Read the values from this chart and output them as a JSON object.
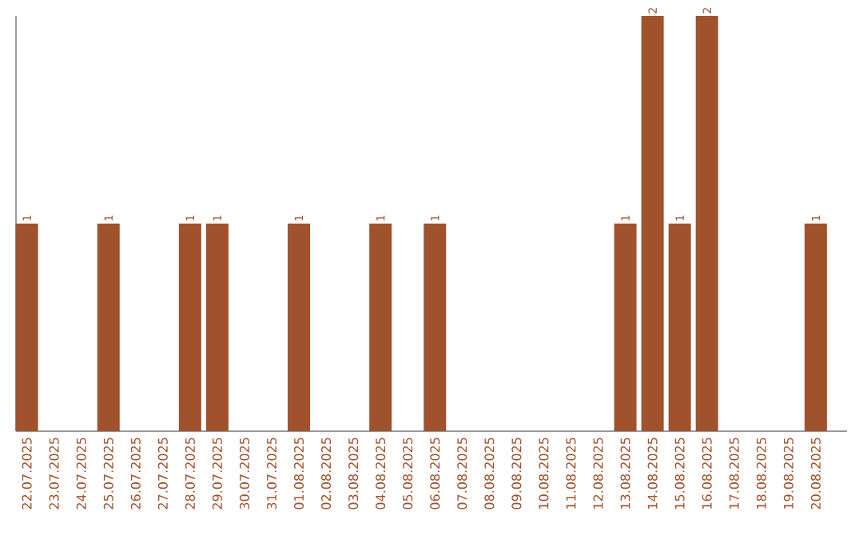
{
  "chart_data": {
    "type": "bar",
    "color": "#a0522d",
    "categories": [
      "22.07.2025",
      "23.07.2025",
      "24.07.2025",
      "25.07.2025",
      "26.07.2025",
      "27.07.2025",
      "28.07.2025",
      "29.07.2025",
      "30.07.2025",
      "31.07.2025",
      "01.08.2025",
      "02.08.2025",
      "03.08.2025",
      "04.08.2025",
      "05.08.2025",
      "06.08.2025",
      "07.08.2025",
      "08.08.2025",
      "09.08.2025",
      "10.08.2025",
      "11.08.2025",
      "12.08.2025",
      "13.08.2025",
      "14.08.2025",
      "15.08.2025",
      "16.08.2025",
      "17.08.2025",
      "18.08.2025",
      "19.08.2025",
      "20.08.2025"
    ],
    "values": [
      1,
      0,
      0,
      1,
      0,
      0,
      1,
      1,
      0,
      0,
      1,
      0,
      0,
      1,
      0,
      1,
      0,
      0,
      0,
      0,
      0,
      0,
      1,
      2,
      1,
      2,
      0,
      0,
      0,
      1
    ],
    "value_labels": [
      "1",
      null,
      null,
      "1",
      null,
      null,
      "1",
      "1",
      null,
      null,
      "1",
      null,
      null,
      "1",
      null,
      "1",
      null,
      null,
      null,
      null,
      null,
      null,
      "1",
      "2",
      "1",
      "2",
      null,
      null,
      null,
      "1"
    ]
  }
}
